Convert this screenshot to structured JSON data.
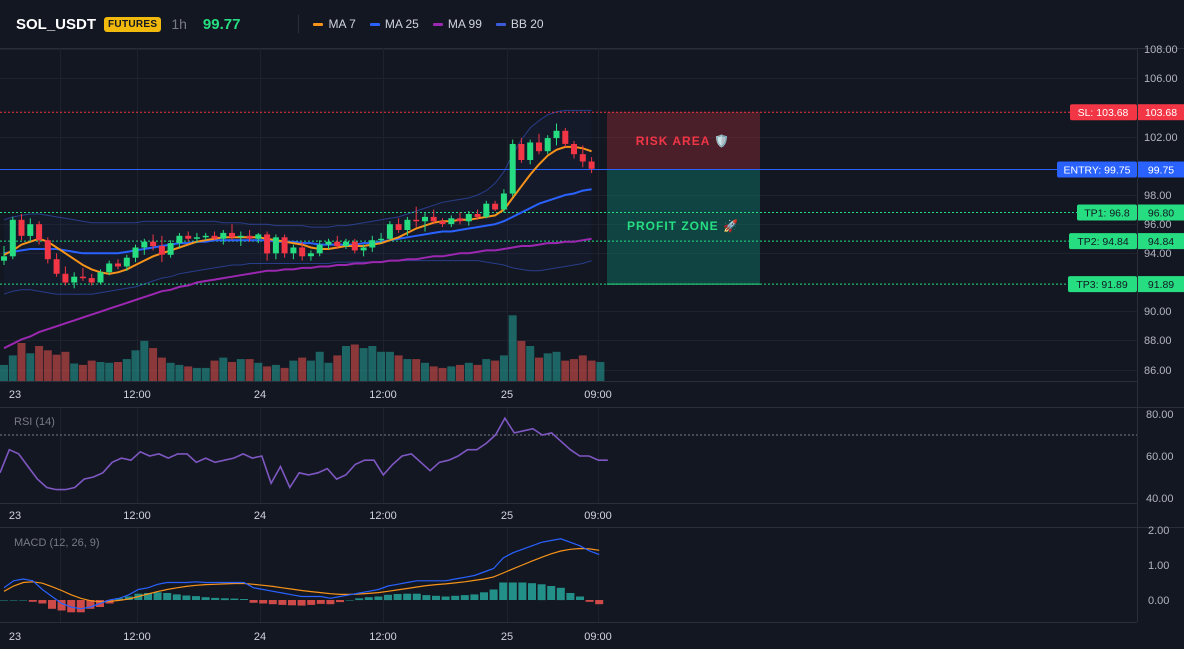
{
  "header": {
    "symbol": "SOL_USDT",
    "badge": "FUTURES",
    "timeframe": "1h",
    "price": "99.77",
    "legend": [
      {
        "label": "MA 7",
        "color": "#f7931a"
      },
      {
        "label": "MA 25",
        "color": "#2962ff"
      },
      {
        "label": "MA 99",
        "color": "#9c27b0"
      },
      {
        "label": "BB 20",
        "color": "#3b5bdb"
      }
    ]
  },
  "price_axis": {
    "labels": [
      "108.00",
      "106.00",
      "102.00",
      "98.00",
      "96.00",
      "94.00",
      "90.00",
      "88.00",
      "86.00"
    ]
  },
  "rsi_axis": {
    "labels": [
      "80.00",
      "60.00",
      "40.00"
    ]
  },
  "macd_axis": {
    "labels": [
      "2.00",
      "1.00",
      "0.00"
    ]
  },
  "time_axis": {
    "labels": [
      "23",
      "12:00",
      "24",
      "12:00",
      "25",
      "09:00"
    ]
  },
  "levels": {
    "sl": {
      "text": "SL: 103.68",
      "value": "103.68",
      "color": "#f23645"
    },
    "entry": {
      "text": "ENTRY: 99.75",
      "value": "99.75",
      "color": "#2962ff"
    },
    "tp1": {
      "text": "TP1: 96.8",
      "value": "96.80",
      "color": "#26de81"
    },
    "tp2": {
      "text": "TP2: 94.84",
      "value": "94.84",
      "color": "#26de81"
    },
    "tp3": {
      "text": "TP3: 91.89",
      "value": "91.89",
      "color": "#26de81"
    }
  },
  "zones": {
    "risk": {
      "label": "RISK AREA 🛡️"
    },
    "profit": {
      "label": "PROFIT ZONE 🚀"
    }
  },
  "panes": {
    "rsi": {
      "title": "RSI (14)"
    },
    "macd": {
      "title": "MACD (12, 26, 9)"
    }
  },
  "chart_data": {
    "type": "candlestick",
    "candles": [
      [
        93.5,
        94.5,
        93.2,
        93.8
      ],
      [
        93.8,
        96.5,
        93.6,
        96.3
      ],
      [
        96.3,
        96.7,
        94.9,
        95.2
      ],
      [
        95.2,
        96.4,
        94.8,
        96.0
      ],
      [
        96.0,
        96.2,
        94.6,
        94.9
      ],
      [
        94.9,
        95.1,
        93.3,
        93.6
      ],
      [
        93.6,
        94.0,
        92.4,
        92.6
      ],
      [
        92.6,
        93.1,
        91.8,
        92.0
      ],
      [
        92.0,
        92.7,
        91.6,
        92.4
      ],
      [
        92.4,
        93.0,
        92.1,
        92.3
      ],
      [
        92.3,
        92.6,
        91.8,
        92.0
      ],
      [
        92.0,
        92.9,
        91.9,
        92.7
      ],
      [
        92.7,
        93.5,
        92.5,
        93.3
      ],
      [
        93.3,
        93.6,
        92.9,
        93.1
      ],
      [
        93.1,
        93.9,
        92.8,
        93.7
      ],
      [
        93.7,
        94.6,
        93.4,
        94.4
      ],
      [
        94.4,
        95.0,
        93.9,
        94.8
      ],
      [
        94.8,
        95.3,
        94.2,
        94.5
      ],
      [
        94.5,
        95.2,
        93.4,
        93.9
      ],
      [
        93.9,
        94.9,
        93.7,
        94.7
      ],
      [
        94.7,
        95.4,
        94.4,
        95.2
      ],
      [
        95.2,
        95.5,
        94.8,
        95.0
      ],
      [
        95.0,
        95.4,
        94.7,
        95.1
      ],
      [
        95.1,
        95.4,
        94.9,
        95.2
      ],
      [
        95.2,
        95.5,
        94.9,
        95.0
      ],
      [
        95.0,
        95.6,
        94.6,
        95.4
      ],
      [
        95.4,
        96.0,
        94.9,
        95.1
      ],
      [
        95.1,
        95.5,
        94.5,
        95.2
      ],
      [
        95.2,
        95.6,
        94.8,
        95.0
      ],
      [
        95.0,
        95.4,
        94.7,
        95.3
      ],
      [
        95.3,
        95.5,
        93.5,
        94.0
      ],
      [
        94.0,
        95.3,
        93.6,
        95.1
      ],
      [
        95.1,
        95.3,
        93.7,
        94.0
      ],
      [
        94.0,
        94.6,
        93.6,
        94.4
      ],
      [
        94.4,
        94.8,
        93.5,
        93.8
      ],
      [
        93.8,
        94.2,
        93.5,
        94.0
      ],
      [
        94.0,
        94.9,
        93.8,
        94.6
      ],
      [
        94.6,
        95.0,
        94.3,
        94.8
      ],
      [
        94.8,
        95.2,
        94.3,
        94.5
      ],
      [
        94.5,
        95.0,
        94.3,
        94.8
      ],
      [
        94.8,
        95.0,
        94.0,
        94.2
      ],
      [
        94.2,
        94.6,
        93.8,
        94.4
      ],
      [
        94.4,
        95.2,
        94.1,
        94.9
      ],
      [
        94.9,
        95.4,
        94.7,
        95.0
      ],
      [
        95.0,
        96.2,
        94.9,
        96.0
      ],
      [
        96.0,
        96.4,
        95.4,
        95.6
      ],
      [
        95.6,
        96.5,
        95.2,
        96.3
      ],
      [
        96.3,
        97.2,
        95.8,
        96.2
      ],
      [
        96.2,
        96.8,
        95.5,
        96.5
      ],
      [
        96.5,
        97.0,
        96.0,
        96.2
      ],
      [
        96.2,
        96.4,
        95.8,
        96.0
      ],
      [
        96.0,
        96.6,
        95.8,
        96.4
      ],
      [
        96.4,
        96.8,
        96.0,
        96.2
      ],
      [
        96.2,
        96.9,
        95.9,
        96.7
      ],
      [
        96.7,
        97.0,
        96.3,
        96.5
      ],
      [
        96.5,
        97.6,
        96.4,
        97.4
      ],
      [
        97.4,
        97.6,
        96.9,
        97.0
      ],
      [
        97.0,
        98.4,
        96.8,
        98.1
      ],
      [
        98.1,
        101.8,
        97.9,
        101.5
      ],
      [
        101.5,
        101.9,
        100.2,
        100.4
      ],
      [
        100.4,
        101.8,
        100.1,
        101.6
      ],
      [
        101.6,
        102.2,
        100.8,
        101.0
      ],
      [
        101.0,
        102.1,
        100.8,
        101.9
      ],
      [
        101.9,
        102.9,
        101.4,
        102.4
      ],
      [
        102.4,
        102.6,
        101.3,
        101.5
      ],
      [
        101.5,
        101.7,
        100.5,
        100.8
      ],
      [
        100.8,
        101.4,
        99.9,
        100.3
      ],
      [
        100.3,
        100.6,
        99.5,
        99.8
      ]
    ],
    "volume": [
      22,
      35,
      52,
      38,
      48,
      42,
      36,
      40,
      24,
      22,
      28,
      26,
      25,
      26,
      30,
      42,
      55,
      45,
      32,
      25,
      22,
      20,
      18,
      18,
      28,
      32,
      26,
      30,
      30,
      25,
      20,
      22,
      18,
      28,
      32,
      28,
      40,
      25,
      35,
      48,
      50,
      45,
      48,
      40,
      40,
      35,
      30,
      30,
      25,
      20,
      18,
      20,
      22,
      25,
      22,
      30,
      28,
      35,
      90,
      55,
      48,
      32,
      38,
      40,
      28,
      30,
      35,
      28,
      26
    ],
    "ma7": [
      93.9,
      94.2,
      94.6,
      94.8,
      95.0,
      94.8,
      94.4,
      94.0,
      93.6,
      93.2,
      92.9,
      92.7,
      92.6,
      92.7,
      92.9,
      93.2,
      93.5,
      93.8,
      94.0,
      94.2,
      94.4,
      94.6,
      94.8,
      94.9,
      95.0,
      95.1,
      95.1,
      95.1,
      95.1,
      95.1,
      95.0,
      94.9,
      94.8,
      94.7,
      94.6,
      94.4,
      94.3,
      94.3,
      94.4,
      94.5,
      94.5,
      94.5,
      94.6,
      94.7,
      94.9,
      95.1,
      95.4,
      95.7,
      95.9,
      96.1,
      96.2,
      96.2,
      96.3,
      96.3,
      96.4,
      96.5,
      96.6,
      97.0,
      97.8,
      98.6,
      99.4,
      100.1,
      100.7,
      101.1,
      101.3,
      101.3,
      101.2,
      101.0
    ],
    "ma25": [
      94.0,
      94.1,
      94.2,
      94.3,
      94.3,
      94.3,
      94.3,
      94.2,
      94.1,
      94.0,
      94.0,
      94.0,
      94.0,
      94.0,
      94.1,
      94.2,
      94.3,
      94.4,
      94.5,
      94.6,
      94.7,
      94.7,
      94.8,
      94.8,
      94.9,
      94.9,
      94.9,
      94.9,
      94.9,
      94.9,
      94.9,
      94.8,
      94.8,
      94.8,
      94.7,
      94.7,
      94.6,
      94.6,
      94.6,
      94.6,
      94.6,
      94.7,
      94.7,
      94.8,
      94.9,
      95.0,
      95.1,
      95.2,
      95.3,
      95.4,
      95.5,
      95.5,
      95.6,
      95.7,
      95.8,
      95.9,
      96.0,
      96.2,
      96.5,
      96.8,
      97.1,
      97.4,
      97.6,
      97.8,
      98.0,
      98.1,
      98.3,
      98.4
    ],
    "ma99": [
      87.5,
      87.8,
      88.1,
      88.3,
      88.6,
      88.8,
      89.0,
      89.2,
      89.4,
      89.6,
      89.8,
      90.0,
      90.2,
      90.4,
      90.6,
      90.8,
      91.0,
      91.2,
      91.4,
      91.5,
      91.7,
      91.8,
      92.0,
      92.1,
      92.2,
      92.3,
      92.4,
      92.5,
      92.6,
      92.7,
      92.8,
      92.8,
      92.9,
      92.9,
      93.0,
      93.0,
      93.1,
      93.1,
      93.2,
      93.2,
      93.3,
      93.3,
      93.4,
      93.4,
      93.5,
      93.5,
      93.6,
      93.6,
      93.7,
      93.8,
      93.8,
      93.9,
      94.0,
      94.0,
      94.1,
      94.2,
      94.2,
      94.3,
      94.4,
      94.5,
      94.5,
      94.6,
      94.7,
      94.7,
      94.8,
      94.8,
      94.9,
      95.0
    ],
    "bb_upper": [
      96.3,
      96.5,
      96.6,
      96.7,
      96.7,
      96.6,
      96.5,
      96.4,
      96.3,
      96.2,
      96.1,
      96.1,
      96.1,
      96.1,
      96.1,
      96.1,
      96.2,
      96.2,
      96.2,
      96.2,
      96.2,
      96.2,
      96.2,
      96.2,
      96.2,
      96.1,
      96.1,
      96.1,
      96.0,
      96.0,
      96.0,
      95.9,
      95.9,
      95.9,
      95.9,
      95.8,
      95.8,
      95.8,
      95.9,
      95.9,
      96.0,
      96.1,
      96.2,
      96.3,
      96.4,
      96.5,
      96.7,
      96.9,
      97.1,
      97.3,
      97.5,
      97.6,
      97.7,
      97.8,
      98.0,
      98.3,
      98.8,
      99.6,
      100.8,
      101.8,
      102.6,
      103.1,
      103.5,
      103.7,
      103.8,
      103.8,
      103.8,
      103.8
    ],
    "bb_lower": [
      91.2,
      91.4,
      91.5,
      91.5,
      91.4,
      91.3,
      91.2,
      91.2,
      91.2,
      91.2,
      91.2,
      91.3,
      91.4,
      91.5,
      91.6,
      91.7,
      91.9,
      92.1,
      92.3,
      92.4,
      92.6,
      92.7,
      92.8,
      92.9,
      93.0,
      93.1,
      93.2,
      93.2,
      93.3,
      93.3,
      93.3,
      93.3,
      93.3,
      93.3,
      93.3,
      93.3,
      93.3,
      93.3,
      93.4,
      93.4,
      93.4,
      93.4,
      93.4,
      93.4,
      93.5,
      93.5,
      93.5,
      93.5,
      93.5,
      93.5,
      93.5,
      93.5,
      93.5,
      93.5,
      93.5,
      93.4,
      93.3,
      93.2,
      93.0,
      92.9,
      92.8,
      92.8,
      92.9,
      93.0,
      93.1,
      93.2,
      93.3,
      93.5
    ],
    "rsi": [
      52,
      63,
      61,
      55,
      49,
      45,
      44,
      44,
      45,
      49,
      50,
      52,
      57,
      59,
      58,
      62,
      60,
      61,
      59,
      61,
      61,
      57,
      59,
      57,
      58,
      59,
      61,
      59,
      60,
      47,
      55,
      45,
      52,
      51,
      52,
      54,
      49,
      51,
      56,
      58,
      58,
      51,
      56,
      60,
      61,
      57,
      53,
      57,
      58,
      60,
      63,
      63,
      66,
      70,
      78,
      71,
      72,
      73,
      70,
      71,
      67,
      63,
      60,
      60,
      58,
      58
    ],
    "macd_line": [
      0.35,
      0.55,
      0.6,
      0.55,
      0.3,
      0.1,
      -0.1,
      -0.2,
      -0.25,
      -0.2,
      -0.1,
      0.0,
      0.05,
      0.15,
      0.3,
      0.35,
      0.45,
      0.5,
      0.5,
      0.5,
      0.52,
      0.5,
      0.5,
      0.5,
      0.5,
      0.5,
      0.35,
      0.3,
      0.25,
      0.2,
      0.15,
      0.1,
      0.1,
      0.1,
      0.05,
      0.1,
      0.15,
      0.2,
      0.25,
      0.3,
      0.4,
      0.45,
      0.5,
      0.55,
      0.55,
      0.55,
      0.55,
      0.6,
      0.65,
      0.7,
      0.8,
      0.9,
      1.2,
      1.35,
      1.45,
      1.55,
      1.65,
      1.7,
      1.75,
      1.65,
      1.55,
      1.4,
      1.3
    ],
    "macd_signal": [
      0.25,
      0.4,
      0.5,
      0.52,
      0.48,
      0.38,
      0.27,
      0.15,
      0.05,
      -0.02,
      -0.05,
      -0.04,
      -0.01,
      0.03,
      0.1,
      0.17,
      0.24,
      0.3,
      0.35,
      0.39,
      0.42,
      0.44,
      0.45,
      0.46,
      0.47,
      0.47,
      0.45,
      0.42,
      0.39,
      0.35,
      0.31,
      0.27,
      0.24,
      0.21,
      0.18,
      0.16,
      0.16,
      0.17,
      0.19,
      0.21,
      0.25,
      0.29,
      0.33,
      0.37,
      0.41,
      0.44,
      0.46,
      0.49,
      0.52,
      0.56,
      0.6,
      0.66,
      0.77,
      0.89,
      1.0,
      1.11,
      1.22,
      1.32,
      1.4,
      1.45,
      1.47,
      1.46,
      1.42
    ],
    "macd_hist": [
      0.0,
      0.0,
      0.0,
      -0.05,
      -0.1,
      -0.25,
      -0.3,
      -0.35,
      -0.35,
      -0.25,
      -0.2,
      -0.1,
      0.05,
      0.1,
      0.18,
      0.2,
      0.22,
      0.2,
      0.16,
      0.13,
      0.11,
      0.08,
      0.06,
      0.05,
      0.04,
      0.03,
      -0.08,
      -0.1,
      -0.12,
      -0.14,
      -0.15,
      -0.16,
      -0.14,
      -0.11,
      -0.12,
      -0.06,
      0.0,
      0.05,
      0.08,
      0.1,
      0.15,
      0.17,
      0.18,
      0.18,
      0.14,
      0.12,
      0.1,
      0.12,
      0.14,
      0.16,
      0.22,
      0.3,
      0.5,
      0.5,
      0.5,
      0.48,
      0.45,
      0.4,
      0.35,
      0.2,
      0.1,
      -0.05,
      -0.12
    ],
    "ylim": [
      85,
      108.5
    ]
  }
}
